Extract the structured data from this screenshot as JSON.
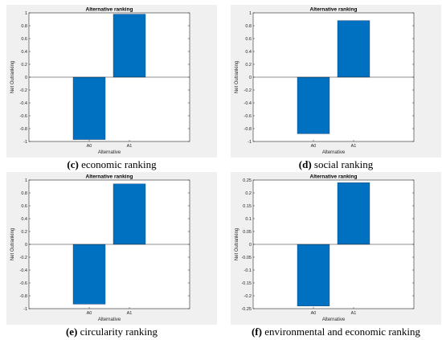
{
  "chart_data": [
    {
      "type": "bar",
      "title": "Alternative ranking",
      "caption_letter": "(c)",
      "caption_text": " economic ranking",
      "xlabel": "Alternative",
      "ylabel": "Net Outranking",
      "categories": [
        "A0",
        "A1"
      ],
      "values": [
        -0.97,
        0.98
      ],
      "ylim": [
        -1,
        1
      ],
      "yticks": [
        "-1",
        "-0.8",
        "-0.6",
        "-0.4",
        "-0.2",
        "0",
        "0.2",
        "0.4",
        "0.6",
        "0.8",
        "1"
      ],
      "bar_color": "#0070c0"
    },
    {
      "type": "bar",
      "title": "Alternative ranking",
      "caption_letter": "(d)",
      "caption_text": " social ranking",
      "xlabel": "Alternative",
      "ylabel": "Net Outranking",
      "categories": [
        "A0",
        "A1"
      ],
      "values": [
        -0.88,
        0.88
      ],
      "ylim": [
        -1,
        1
      ],
      "yticks": [
        "-1",
        "-0.8",
        "-0.6",
        "-0.4",
        "-0.2",
        "0",
        "0.2",
        "0.4",
        "0.6",
        "0.8",
        "1"
      ],
      "bar_color": "#0070c0"
    },
    {
      "type": "bar",
      "title": "Alternative ranking",
      "caption_letter": "(e)",
      "caption_text": " circularity ranking",
      "xlabel": "Alternative",
      "ylabel": "Net Outranking",
      "categories": [
        "A0",
        "A1"
      ],
      "values": [
        -0.93,
        0.94
      ],
      "ylim": [
        -1,
        1
      ],
      "yticks": [
        "-1",
        "-0.8",
        "-0.6",
        "-0.4",
        "-0.2",
        "0",
        "0.2",
        "0.4",
        "0.6",
        "0.8",
        "1"
      ],
      "bar_color": "#0070c0"
    },
    {
      "type": "bar",
      "title": "Alternative ranking",
      "caption_letter": "(f)",
      "caption_text": " environmental and economic ranking",
      "xlabel": "Alternative",
      "ylabel": "Net Outranking",
      "categories": [
        "A0",
        "A1"
      ],
      "values": [
        -0.24,
        0.24
      ],
      "ylim": [
        -0.25,
        0.25
      ],
      "yticks": [
        "-0.25",
        "-0.2",
        "-0.15",
        "-0.1",
        "-0.05",
        "0",
        "0.05",
        "0.1",
        "0.15",
        "0.2",
        "0.25"
      ],
      "bar_color": "#0070c0"
    }
  ]
}
